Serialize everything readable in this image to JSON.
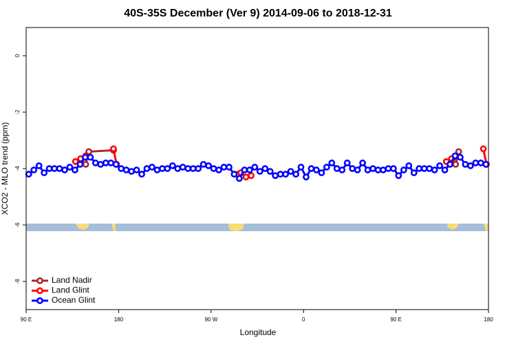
{
  "chart_data": {
    "type": "line",
    "title": "40S-35S December (Ver 9)   2014-09-06 to 2018-12-31",
    "x_label": "Longitude",
    "y_label": "XCO2 - MLO trend (ppm)",
    "xlim": [
      90,
      540
    ],
    "xticks": [
      {
        "value": 90,
        "label": "90 E"
      },
      {
        "value": 180,
        "label": "180"
      },
      {
        "value": 270,
        "label": "90 W"
      },
      {
        "value": 360,
        "label": "0"
      },
      {
        "value": 450,
        "label": "90 E"
      },
      {
        "value": 540,
        "label": "180"
      }
    ],
    "ylim": [
      -9,
      1
    ],
    "yticks": [
      0,
      -2,
      -4,
      -6,
      -8
    ],
    "legend": "bottom-left",
    "series": [
      {
        "name": "Land Nadir",
        "color": "#a52a2a",
        "x": [
          143,
          148,
          151,
          175,
          300,
          504,
          508,
          511
        ],
        "values": [
          -3.75,
          -3.85,
          -3.4,
          -3.35,
          null,
          -3.7,
          -3.85,
          -3.4
        ]
      },
      {
        "name": "Land Glint",
        "color": "#ff0000",
        "x": [
          138,
          143,
          148,
          160,
          175,
          178,
          240,
          296,
          299,
          304,
          309,
          400,
          499,
          504,
          508,
          520,
          535,
          538
        ],
        "values": [
          -3.75,
          -3.65,
          -3.55,
          null,
          -3.3,
          -3.85,
          null,
          -4.2,
          -4.15,
          -4.3,
          -4.25,
          null,
          -3.75,
          -3.65,
          -3.6,
          null,
          -3.3,
          -3.85
        ]
      },
      {
        "name": "Ocean Glint",
        "color": "#0000ff",
        "x": [
          92.5,
          97.5,
          102.5,
          107.5,
          112.5,
          117.5,
          122.5,
          127.5,
          132.5,
          137.5,
          142.5,
          147.5,
          152.5,
          157.5,
          162.5,
          167.5,
          172.5,
          177.5,
          182.5,
          187.5,
          192.5,
          197.5,
          202.5,
          207.5,
          212.5,
          217.5,
          222.5,
          227.5,
          232.5,
          237.5,
          242.5,
          247.5,
          252.5,
          257.5,
          262.5,
          267.5,
          272.5,
          277.5,
          282.5,
          287.5,
          292.5,
          297.5,
          302.5,
          307.5,
          312.5,
          317.5,
          322.5,
          327.5,
          332.5,
          337.5,
          342.5,
          347.5,
          352.5,
          357.5,
          362.5,
          367.5,
          372.5,
          377.5,
          382.5,
          387.5,
          392.5,
          397.5,
          402.5,
          407.5,
          412.5,
          417.5,
          422.5,
          427.5,
          432.5,
          437.5,
          442.5,
          447.5,
          452.5,
          457.5,
          462.5,
          467.5,
          472.5,
          477.5,
          482.5,
          487.5,
          492.5,
          497.5,
          502.5,
          507.5,
          512.5,
          517.5,
          522.5,
          527.5,
          532.5,
          537.5
        ],
        "values": [
          -4.2,
          -4.05,
          -3.9,
          -4.15,
          -4.0,
          -4.0,
          -4.0,
          -4.05,
          -3.95,
          -4.05,
          -3.85,
          -3.6,
          -3.6,
          -3.8,
          -3.85,
          -3.8,
          -3.8,
          -3.85,
          -4.0,
          -4.05,
          -4.1,
          -4.05,
          -4.2,
          -4.0,
          -3.95,
          -4.05,
          -4.0,
          -4.0,
          -3.9,
          -4.0,
          -3.95,
          -4.0,
          -4.0,
          -4.0,
          -3.85,
          -3.9,
          -4.0,
          -4.05,
          -3.95,
          -3.95,
          -4.2,
          -4.35,
          -4.05,
          -4.05,
          -3.95,
          -4.1,
          -4.0,
          -4.1,
          -4.25,
          -4.2,
          -4.2,
          -4.1,
          -4.2,
          -3.95,
          -4.3,
          -4.0,
          -4.05,
          -4.15,
          -3.95,
          -3.8,
          -4.0,
          -4.05,
          -3.8,
          -4.0,
          -4.05,
          -3.8,
          -4.05,
          -4.0,
          -4.05,
          -4.05,
          -4.0,
          -4.0,
          -4.25,
          -4.05,
          -3.9,
          -4.15,
          -4.0,
          -4.0,
          -4.0,
          -4.05,
          -3.9,
          -4.05,
          -3.85,
          -3.55,
          -3.6,
          -3.85,
          -3.9,
          -3.8,
          -3.8,
          -3.85
        ]
      }
    ]
  }
}
